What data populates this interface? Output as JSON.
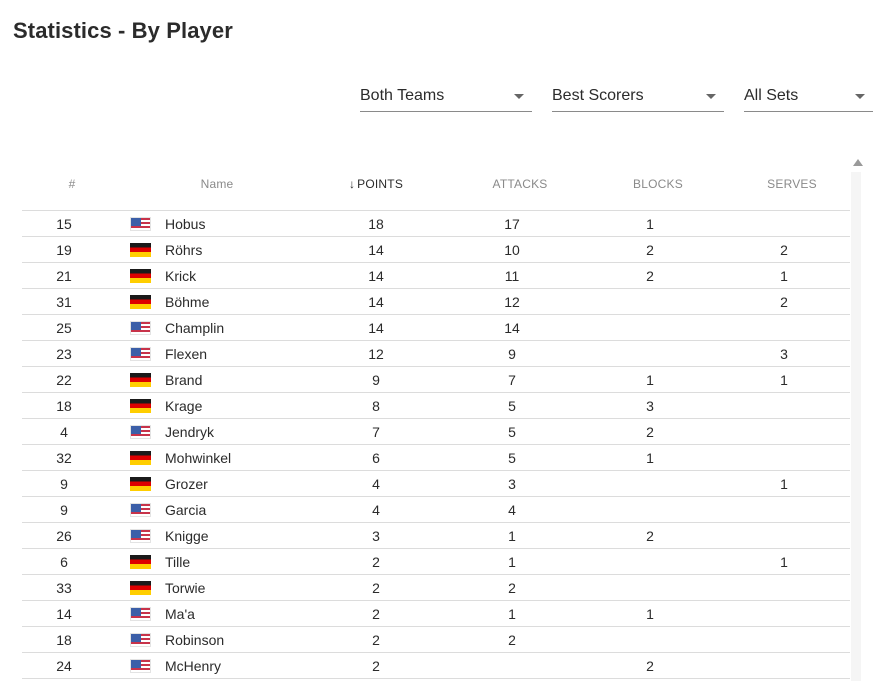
{
  "page": {
    "title": "Statistics - By Player"
  },
  "filters": {
    "team": "Both Teams",
    "type": "Best Scorers",
    "sets": "All Sets"
  },
  "table": {
    "headers": {
      "num": "#",
      "name": "Name",
      "points": "POINTS",
      "attacks": "ATTACKS",
      "blocks": "BLOCKS",
      "serves": "SERVES"
    },
    "sorted_by": "points",
    "rows": [
      {
        "num": "15",
        "flag": "us",
        "name": "Hobus",
        "points": "18",
        "attacks": "17",
        "blocks": "1",
        "serves": ""
      },
      {
        "num": "19",
        "flag": "de",
        "name": "Röhrs",
        "points": "14",
        "attacks": "10",
        "blocks": "2",
        "serves": "2"
      },
      {
        "num": "21",
        "flag": "de",
        "name": "Krick",
        "points": "14",
        "attacks": "11",
        "blocks": "2",
        "serves": "1"
      },
      {
        "num": "31",
        "flag": "de",
        "name": "Böhme",
        "points": "14",
        "attacks": "12",
        "blocks": "",
        "serves": "2"
      },
      {
        "num": "25",
        "flag": "us",
        "name": "Champlin",
        "points": "14",
        "attacks": "14",
        "blocks": "",
        "serves": ""
      },
      {
        "num": "23",
        "flag": "us",
        "name": "Flexen",
        "points": "12",
        "attacks": "9",
        "blocks": "",
        "serves": "3"
      },
      {
        "num": "22",
        "flag": "de",
        "name": "Brand",
        "points": "9",
        "attacks": "7",
        "blocks": "1",
        "serves": "1"
      },
      {
        "num": "18",
        "flag": "de",
        "name": "Krage",
        "points": "8",
        "attacks": "5",
        "blocks": "3",
        "serves": ""
      },
      {
        "num": "4",
        "flag": "us",
        "name": "Jendryk",
        "points": "7",
        "attacks": "5",
        "blocks": "2",
        "serves": ""
      },
      {
        "num": "32",
        "flag": "de",
        "name": "Mohwinkel",
        "points": "6",
        "attacks": "5",
        "blocks": "1",
        "serves": ""
      },
      {
        "num": "9",
        "flag": "de",
        "name": "Grozer",
        "points": "4",
        "attacks": "3",
        "blocks": "",
        "serves": "1"
      },
      {
        "num": "9",
        "flag": "us",
        "name": "Garcia",
        "points": "4",
        "attacks": "4",
        "blocks": "",
        "serves": ""
      },
      {
        "num": "26",
        "flag": "us",
        "name": "Knigge",
        "points": "3",
        "attacks": "1",
        "blocks": "2",
        "serves": ""
      },
      {
        "num": "6",
        "flag": "de",
        "name": "Tille",
        "points": "2",
        "attacks": "1",
        "blocks": "",
        "serves": "1"
      },
      {
        "num": "33",
        "flag": "de",
        "name": "Torwie",
        "points": "2",
        "attacks": "2",
        "blocks": "",
        "serves": ""
      },
      {
        "num": "14",
        "flag": "us",
        "name": "Ma'a",
        "points": "2",
        "attacks": "1",
        "blocks": "1",
        "serves": ""
      },
      {
        "num": "18",
        "flag": "us",
        "name": "Robinson",
        "points": "2",
        "attacks": "2",
        "blocks": "",
        "serves": ""
      },
      {
        "num": "24",
        "flag": "us",
        "name": "McHenry",
        "points": "2",
        "attacks": "",
        "blocks": "2",
        "serves": ""
      }
    ]
  },
  "icons": {
    "sort": "arrow-down-icon",
    "dropdown": "caret-down-icon",
    "flag_de": "flag-germany-icon",
    "flag_us": "flag-usa-icon",
    "scroll": "scroll-up-icon"
  }
}
